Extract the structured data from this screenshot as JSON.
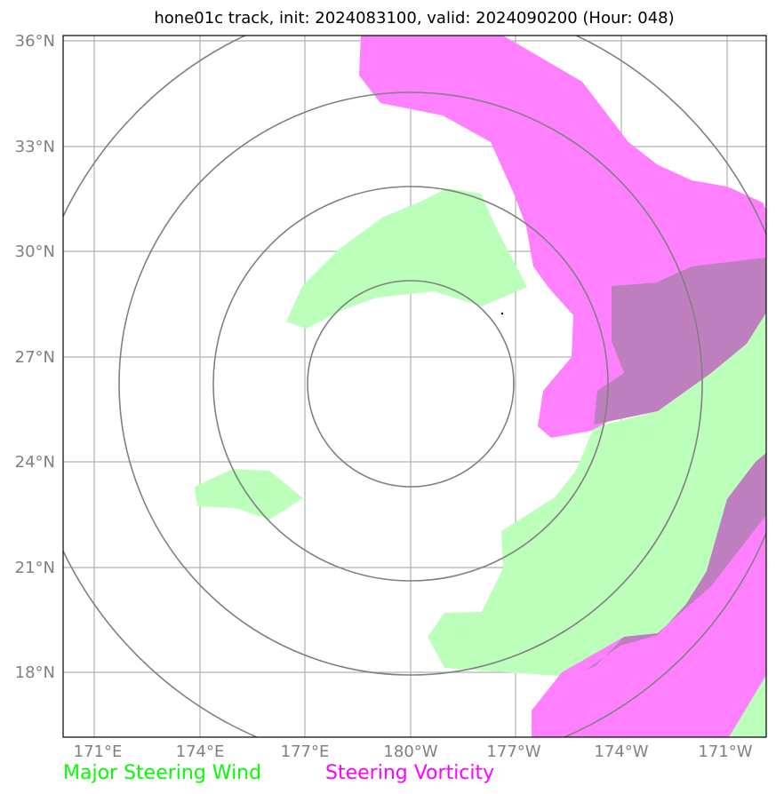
{
  "title": "hone01c track, init: 2024083100, valid: 2024090200 (Hour: 048)",
  "colors": {
    "steering_wind": "#00ff00",
    "steering_wind_fill": "#bbffbb",
    "steering_vorticity": "#ff00ff",
    "vorticity_fill": "#ff80ff",
    "overlap_fill": "#bd7fbd",
    "grid": "#b0b0b0",
    "rings": "#808080"
  },
  "axes": {
    "lat_ticks": [
      "36°N",
      "33°N",
      "30°N",
      "27°N",
      "24°N",
      "21°N",
      "18°N"
    ],
    "lon_ticks": [
      "171°E",
      "174°E",
      "177°E",
      "180°W",
      "177°W",
      "174°W",
      "171°W"
    ]
  },
  "legend": {
    "wind_label": "Major Steering Wind",
    "vorticity_label": "Steering Vorticity"
  }
}
